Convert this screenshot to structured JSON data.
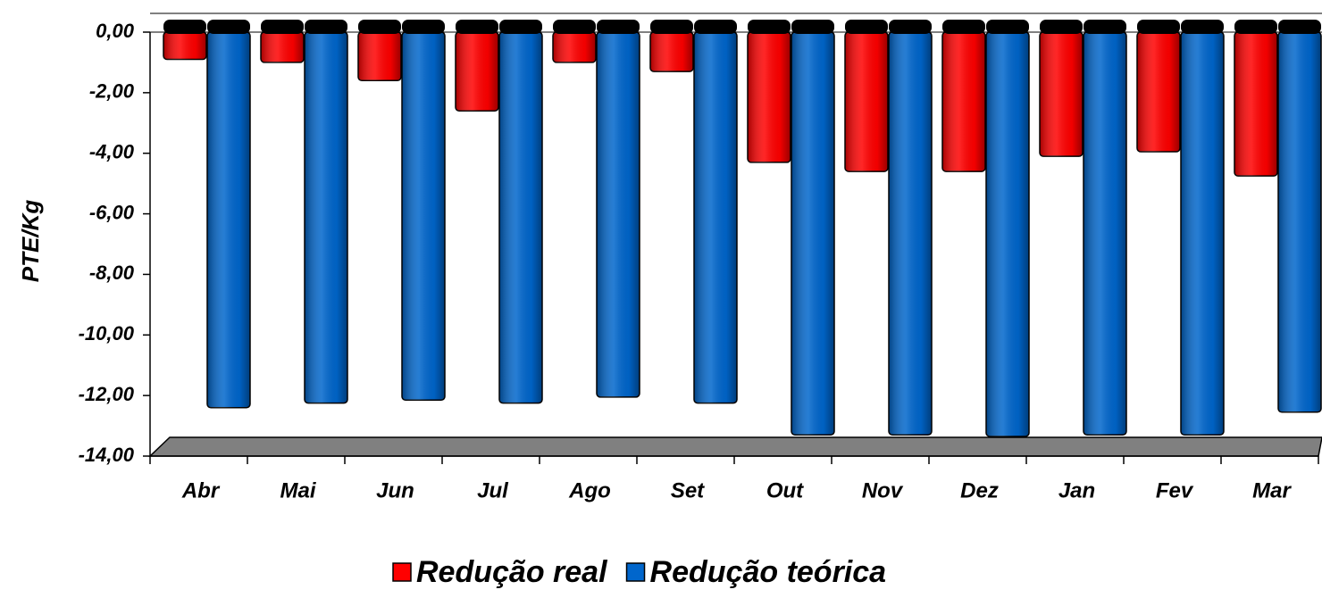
{
  "chart_data": {
    "type": "bar",
    "y_label": "PTE/Kg",
    "categories": [
      "Abr",
      "Mai",
      "Jun",
      "Jul",
      "Ago",
      "Set",
      "Out",
      "Nov",
      "Dez",
      "Jan",
      "Fev",
      "Mar"
    ],
    "series": [
      {
        "name": "Redução real",
        "color": "#ff0000",
        "values": [
          -0.9,
          -1.0,
          -1.6,
          -2.6,
          -1.0,
          -1.3,
          -4.3,
          -4.6,
          -4.6,
          -4.1,
          -3.95,
          -4.75
        ]
      },
      {
        "name": "Redução teórica",
        "color": "#0066cc",
        "values": [
          -12.4,
          -12.25,
          -12.15,
          -12.25,
          -12.05,
          -12.25,
          -13.3,
          -13.3,
          -13.35,
          -13.3,
          -13.3,
          -12.55
        ]
      }
    ],
    "ylim": [
      -14,
      0
    ],
    "yticks": [
      {
        "value": 0,
        "label": "0,00"
      },
      {
        "value": -2,
        "label": "-2,00"
      },
      {
        "value": -4,
        "label": "-4,00"
      },
      {
        "value": -6,
        "label": "-6,00"
      },
      {
        "value": -8,
        "label": "-8,00"
      },
      {
        "value": -10,
        "label": "-10,00"
      },
      {
        "value": -12,
        "label": "-12,00"
      },
      {
        "value": -14,
        "label": "-14,00"
      }
    ],
    "grid": false,
    "legend": "bottom"
  }
}
